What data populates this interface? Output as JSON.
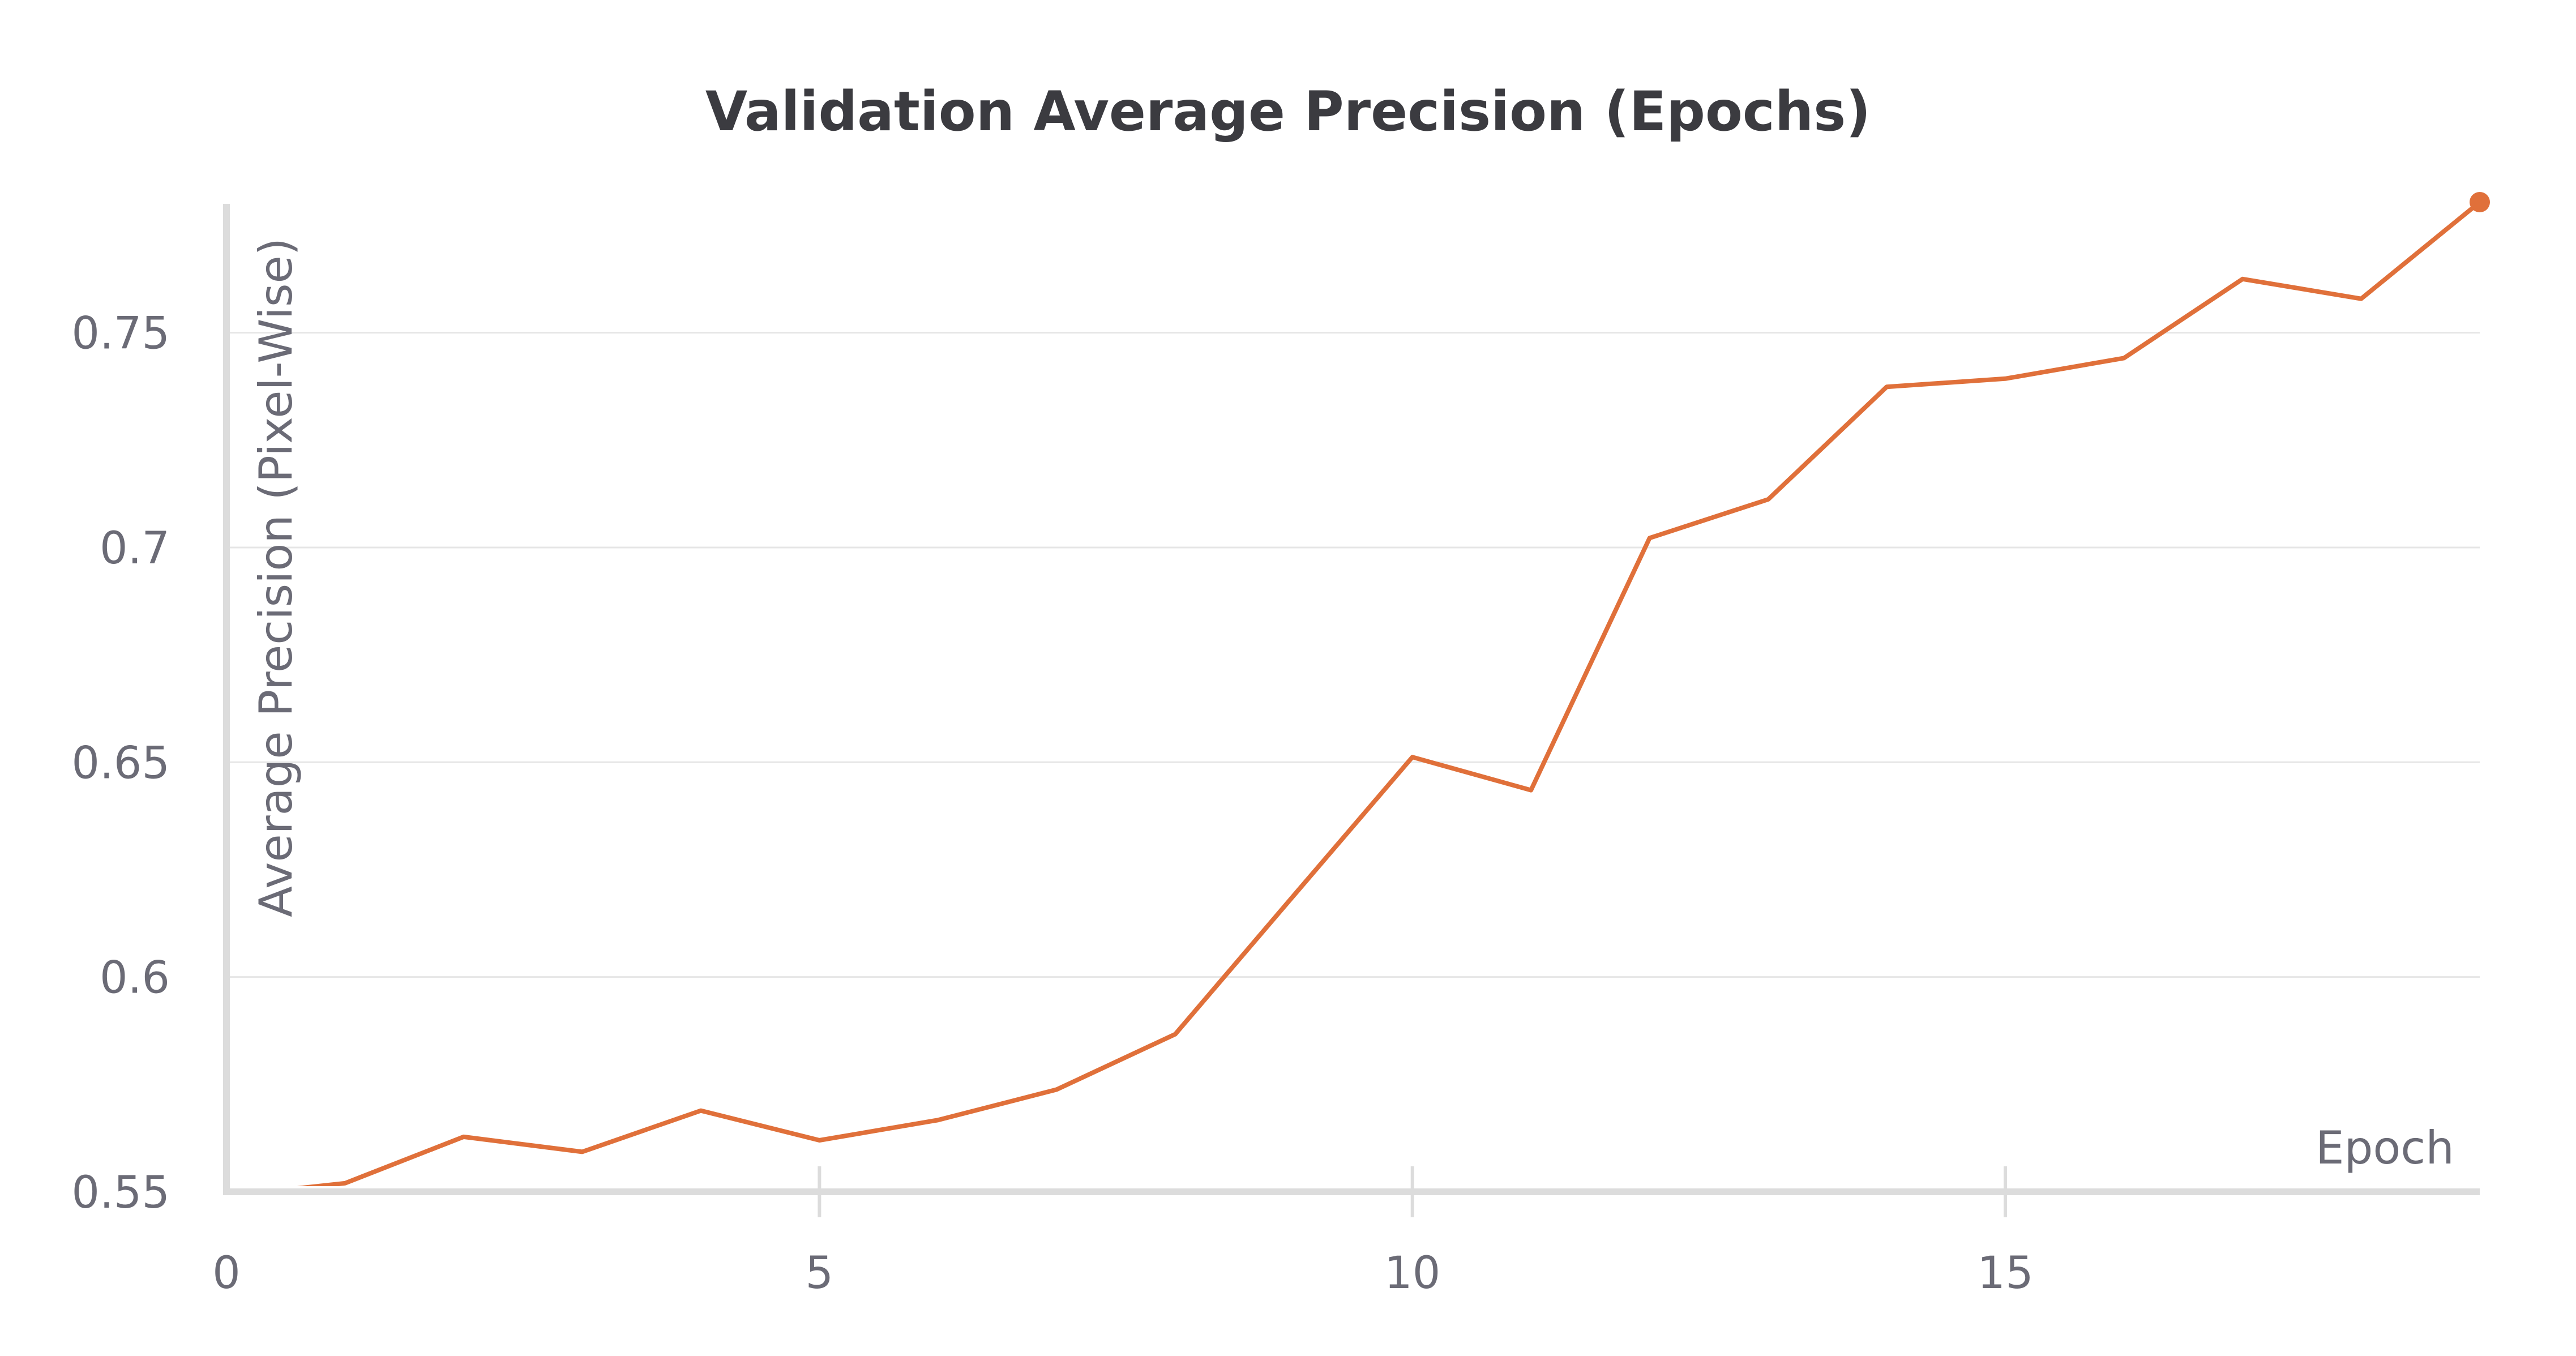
{
  "chart_data": {
    "type": "line",
    "title": "Validation Average Precision (Epochs)",
    "xlabel": "Epoch",
    "ylabel": "Average Precision (Pixel-Wise)",
    "x": [
      0,
      1,
      2,
      3,
      4,
      5,
      6,
      7,
      8,
      9,
      10,
      11,
      12,
      13,
      14,
      15,
      16,
      17,
      18,
      19
    ],
    "series": [
      {
        "values": [
          0.549,
          0.552,
          0.5628,
          0.5593,
          0.5689,
          0.562,
          0.5667,
          0.5738,
          0.5867,
          0.619,
          0.6512,
          0.6435,
          0.7022,
          0.7112,
          0.7374,
          0.7393,
          0.7441,
          0.7625,
          0.7579,
          0.7804
        ],
        "color": "#e0703a"
      }
    ],
    "xlim": [
      0,
      19
    ],
    "ylim": [
      0.55,
      0.78
    ],
    "x_ticks": [
      0,
      5,
      10,
      15
    ],
    "x_tick_labels": [
      "0",
      "5",
      "10",
      "15"
    ],
    "y_ticks": [
      0.55,
      0.6,
      0.65,
      0.7,
      0.75
    ],
    "y_tick_labels": [
      "0.55",
      "0.6",
      "0.65",
      "0.7",
      "0.75"
    ],
    "grid": "horizontal",
    "legend": "none",
    "end_marker": true
  }
}
